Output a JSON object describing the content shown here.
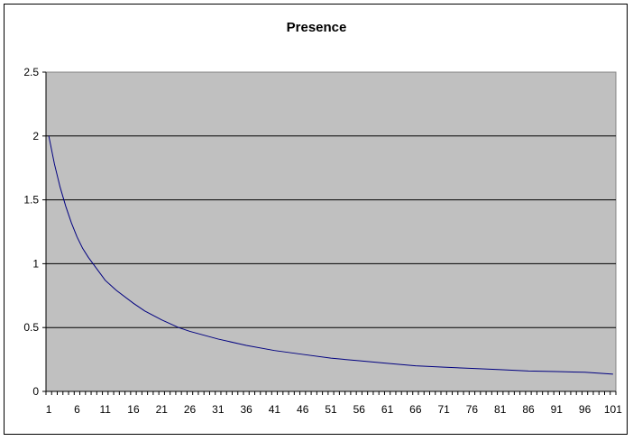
{
  "chart_data": {
    "type": "line",
    "title": "Presence",
    "xlabel": "",
    "ylabel": "",
    "x_range": [
      1,
      101
    ],
    "ylim": [
      0,
      2.5
    ],
    "y_ticks": [
      0,
      0.5,
      1,
      1.5,
      2,
      2.5
    ],
    "y_tick_labels": [
      "0",
      "0.5",
      "1",
      "1.5",
      "2",
      "2.5"
    ],
    "x_tick_labels": [
      "1",
      "6",
      "11",
      "16",
      "21",
      "26",
      "31",
      "36",
      "41",
      "46",
      "51",
      "56",
      "61",
      "66",
      "71",
      "76",
      "81",
      "86",
      "91",
      "96",
      "101"
    ],
    "grid": "horizontal",
    "legend": "none",
    "plot_background": "#c0c0c0",
    "series": [
      {
        "color": "#000080",
        "points": [
          [
            1,
            2.0
          ],
          [
            2,
            1.78
          ],
          [
            3,
            1.6
          ],
          [
            4,
            1.45
          ],
          [
            5,
            1.32
          ],
          [
            6,
            1.21
          ],
          [
            7,
            1.12
          ],
          [
            8,
            1.05
          ],
          [
            9,
            0.99
          ],
          [
            10,
            0.93
          ],
          [
            11,
            0.87
          ],
          [
            13,
            0.79
          ],
          [
            16,
            0.69
          ],
          [
            18,
            0.63
          ],
          [
            21,
            0.56
          ],
          [
            24,
            0.5
          ],
          [
            26,
            0.47
          ],
          [
            31,
            0.41
          ],
          [
            36,
            0.36
          ],
          [
            41,
            0.32
          ],
          [
            46,
            0.29
          ],
          [
            51,
            0.26
          ],
          [
            56,
            0.24
          ],
          [
            61,
            0.22
          ],
          [
            66,
            0.2
          ],
          [
            71,
            0.19
          ],
          [
            76,
            0.18
          ],
          [
            81,
            0.17
          ],
          [
            86,
            0.16
          ],
          [
            91,
            0.155
          ],
          [
            96,
            0.15
          ],
          [
            101,
            0.135
          ]
        ]
      }
    ]
  }
}
